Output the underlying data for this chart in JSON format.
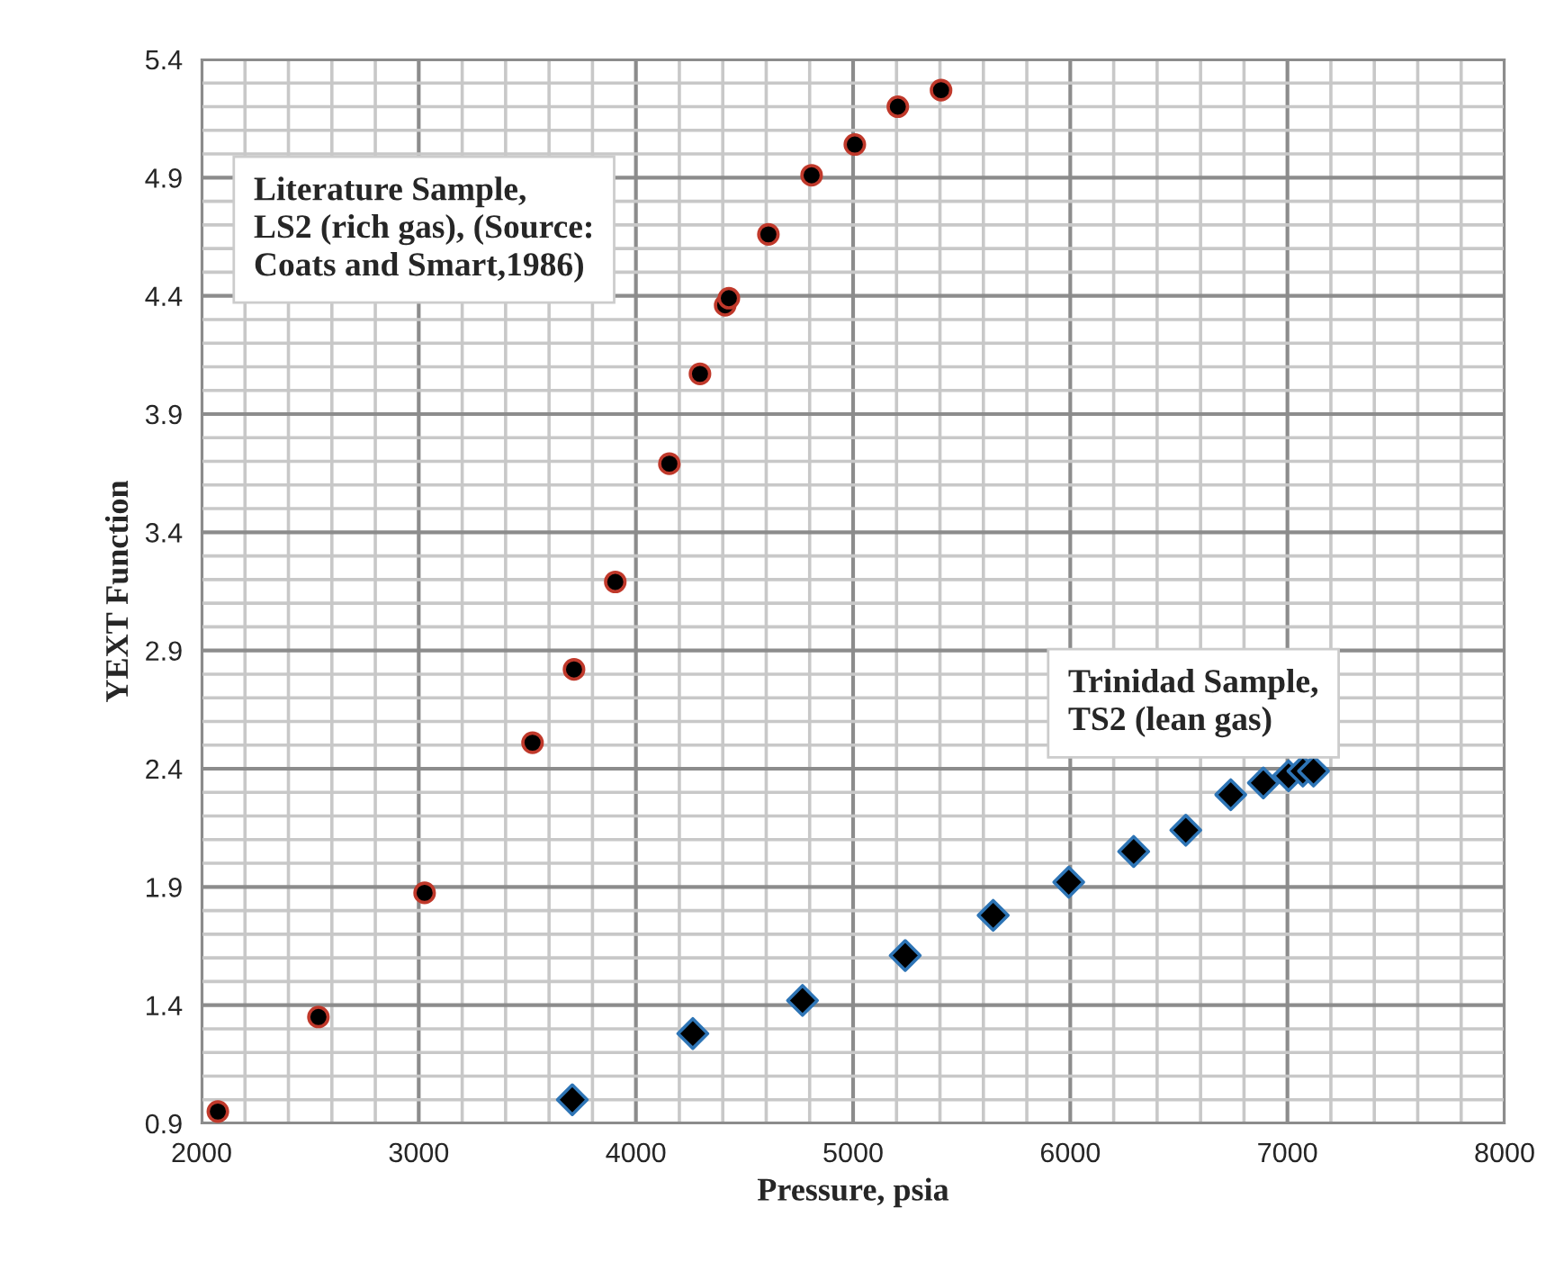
{
  "chart_data": {
    "type": "scatter",
    "xlabel": "Pressure, psia",
    "ylabel": "YEXT Function",
    "xlim": [
      2000,
      8000
    ],
    "xticks": [
      2000,
      3000,
      4000,
      5000,
      6000,
      7000,
      8000
    ],
    "ylim": [
      0.9,
      5.4
    ],
    "yticks": [
      0.9,
      1.4,
      1.9,
      2.4,
      2.9,
      3.4,
      3.9,
      4.4,
      4.9,
      5.4
    ],
    "grid": true,
    "legend": false,
    "series": [
      {
        "color": "#000000",
        "marker": "circle",
        "x": [
          2075,
          2538,
          3027,
          3524,
          3715,
          3905,
          4154,
          4295,
          4411,
          4428,
          4610,
          4809,
          5008,
          5206,
          5405
        ],
        "values": [
          0.95,
          1.35,
          1.875,
          2.51,
          2.82,
          3.19,
          3.69,
          4.07,
          4.36,
          4.39,
          4.66,
          4.91,
          5.04,
          5.2,
          5.27
        ]
      },
      {
        "color": "#000000",
        "marker": "diamond",
        "x": [
          3707,
          4262,
          4767,
          5240,
          5645,
          5993,
          6292,
          6532,
          6739,
          6889,
          7005,
          7071,
          7120
        ],
        "values": [
          1.0,
          1.28,
          1.42,
          1.61,
          1.78,
          1.92,
          2.05,
          2.14,
          2.29,
          2.34,
          2.37,
          2.39,
          2.39
        ]
      }
    ],
    "annotations": [
      "Literature Sample,\nLS2 (rich gas), (Source:\nCoats and Smart,1986)",
      "Trinidad Sample,\nTS2 (lean gas)"
    ]
  }
}
